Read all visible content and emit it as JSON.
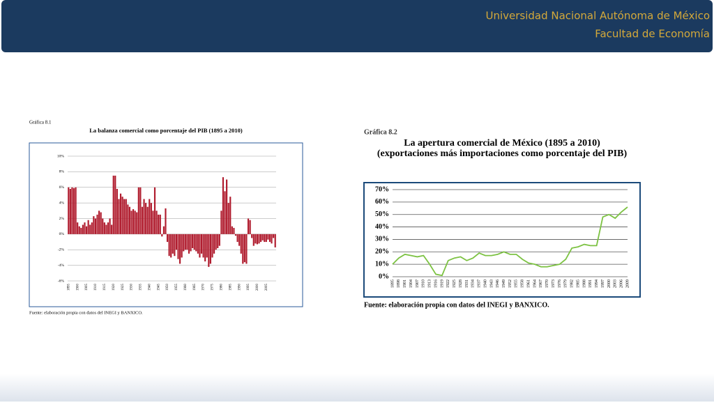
{
  "header": {
    "university": "Universidad Nacional Autónoma de México",
    "faculty": "Facultad de Economía"
  },
  "chart_data": [
    {
      "type": "bar",
      "figure_label": "Gráfica 8.1",
      "title": "La balanza comercial como porcentaje del PIB (1895 a 2010)",
      "source": "Fuente: elaboración propia con datos del INEGI y BANXICO.",
      "color": "#b01c2e",
      "grid": true,
      "categories": [
        "1895",
        null,
        null,
        null,
        null,
        "1900",
        null,
        null,
        null,
        null,
        "1905",
        null,
        null,
        null,
        null,
        "1910",
        null,
        null,
        null,
        null,
        "1915",
        null,
        null,
        null,
        null,
        "1920",
        null,
        null,
        null,
        null,
        "1925",
        null,
        null,
        null,
        null,
        "1930",
        null,
        null,
        null,
        null,
        "1935",
        null,
        null,
        null,
        null,
        "1940",
        null,
        null,
        null,
        null,
        "1945",
        null,
        null,
        null,
        null,
        "1950",
        null,
        null,
        null,
        null,
        "1955",
        null,
        null,
        null,
        null,
        "1960",
        null,
        null,
        null,
        null,
        "1965",
        null,
        null,
        null,
        null,
        "1970",
        null,
        null,
        null,
        null,
        "1975",
        null,
        null,
        null,
        null,
        "1980",
        null,
        null,
        null,
        null,
        "1985",
        null,
        null,
        null,
        null,
        "1990",
        null,
        null,
        null,
        null,
        "1995",
        null,
        null,
        null,
        null,
        "2000",
        null,
        null,
        null,
        null,
        "2005",
        null,
        null,
        null,
        null,
        null
      ],
      "values": [
        6,
        5.8,
        6,
        5.9,
        6,
        1.5,
        1,
        0.8,
        1.2,
        1.5,
        1,
        1.8,
        1.2,
        1.5,
        2.3,
        2,
        2.5,
        3,
        2.8,
        2,
        1.5,
        1.2,
        1.5,
        2,
        1.2,
        7.5,
        7.5,
        5.8,
        4.5,
        5.2,
        4.8,
        4.5,
        4.5,
        3.8,
        3.5,
        3,
        3.2,
        3,
        2.8,
        6,
        6,
        3.5,
        4.5,
        4,
        3.5,
        4.5,
        4,
        3,
        6,
        3,
        2.5,
        2.5,
        -0.3,
        1,
        3.3,
        -1,
        -2.8,
        -3,
        -2.5,
        -2.8,
        -2,
        -3.2,
        -3.8,
        -3,
        -2.2,
        -2,
        -2,
        -2.5,
        -2.2,
        -1.8,
        -2,
        -2.2,
        -2.5,
        -3,
        -2.5,
        -3,
        -3.5,
        -3,
        -4.2,
        -3.8,
        -3,
        -2.5,
        -2,
        -1.8,
        -1.5,
        3,
        7.3,
        5.5,
        7,
        4,
        4.8,
        1,
        0.8,
        -0.2,
        -1,
        -1.5,
        -2.5,
        -3.8,
        -3.6,
        -3.8,
        2,
        1.8,
        -0.5,
        -1.5,
        -1.2,
        -1.3,
        -1.2,
        -1,
        -0.8,
        -1,
        -1,
        -0.7,
        -1,
        -1.2,
        -0.5,
        -1.7
      ],
      "ylim": [
        -6,
        10
      ],
      "yticks": [
        {
          "value": -6,
          "label": "-6%"
        },
        {
          "value": -4,
          "label": "-4%"
        },
        {
          "value": -2,
          "label": "-2%"
        },
        {
          "value": 0,
          "label": "0%"
        },
        {
          "value": 2,
          "label": "2%"
        },
        {
          "value": 4,
          "label": "4%"
        },
        {
          "value": 6,
          "label": "6%"
        },
        {
          "value": 8,
          "label": "8%"
        },
        {
          "value": 10,
          "label": "10%"
        }
      ]
    },
    {
      "type": "line",
      "figure_label": "Gráfica 8.2",
      "title": "La apertura comercial de México (1895 a 2010)",
      "subtitle": "(exportaciones más importaciones como porcentaje del PIB)",
      "source": "Fuente: elaboración propia con datos del INEGI y BANXICO.",
      "color": "#7cc242",
      "grid": true,
      "categories": [
        "1895",
        "1898",
        "1901",
        "1904",
        "1907",
        "1910",
        "1913",
        "1916",
        "1919",
        "1922",
        "1925",
        "1928",
        "1931",
        "1934",
        "1937",
        "1940",
        "1943",
        "1946",
        "1949",
        "1952",
        "1955",
        "1958",
        "1961",
        "1964",
        "1967",
        "1970",
        "1973",
        "1976",
        "1979",
        "1982",
        "1985",
        "1988",
        "1991",
        "1994",
        "1997",
        "2000",
        "2003",
        "2006",
        "2009"
      ],
      "values": [
        10,
        15,
        18,
        17,
        16,
        17,
        10,
        2,
        1,
        13,
        15,
        16,
        13,
        15,
        19,
        17,
        17,
        18,
        20,
        18,
        18,
        14,
        11,
        10,
        8,
        8,
        9,
        10,
        14,
        23,
        24,
        26,
        25,
        25,
        48,
        50,
        47,
        52,
        56
      ],
      "ylim": [
        0,
        70
      ],
      "yticks": [
        {
          "value": 0,
          "label": "0%"
        },
        {
          "value": 10,
          "label": "10%"
        },
        {
          "value": 20,
          "label": "20%"
        },
        {
          "value": 30,
          "label": "30%"
        },
        {
          "value": 40,
          "label": "40%"
        },
        {
          "value": 50,
          "label": "50%"
        },
        {
          "value": 60,
          "label": "60%"
        },
        {
          "value": 70,
          "label": "70%"
        }
      ]
    }
  ]
}
